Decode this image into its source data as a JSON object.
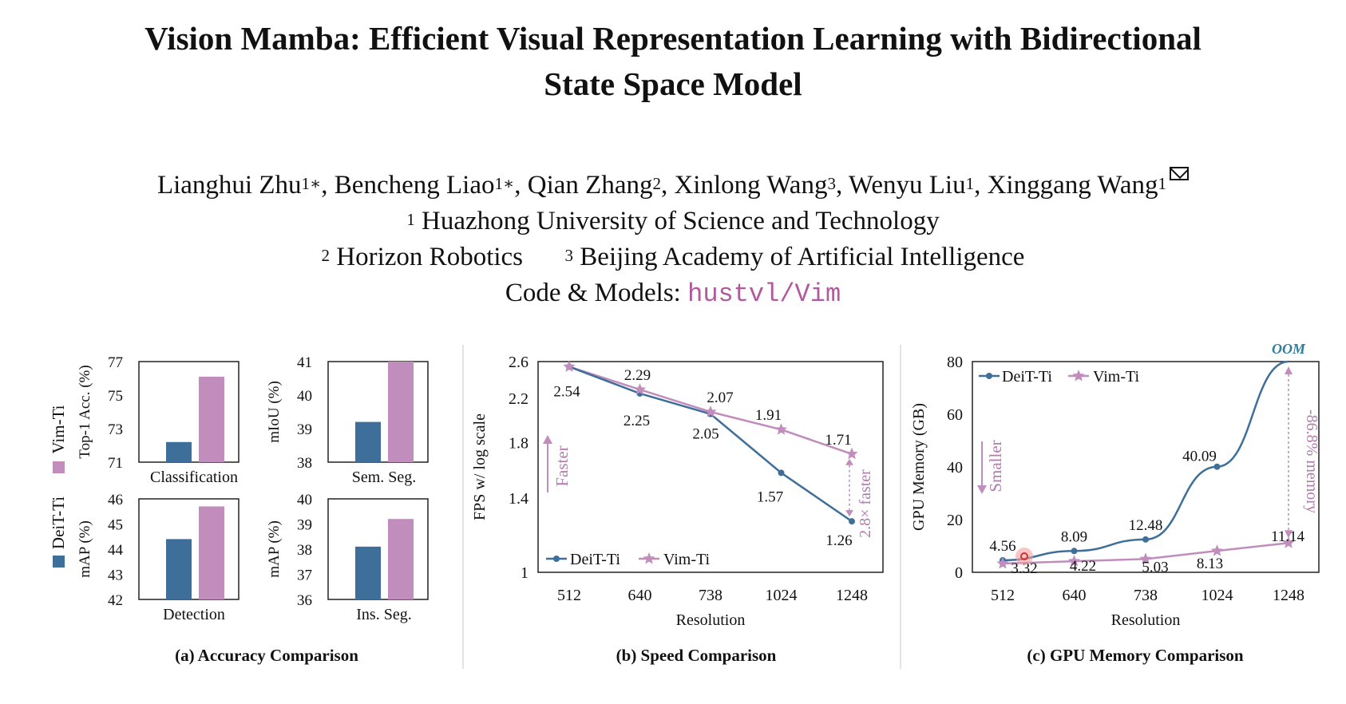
{
  "paper": {
    "title_line1": "Vision Mamba: Efficient Visual Representation Learning with Bidirectional",
    "title_line2": "State Space Model",
    "authors": [
      {
        "name": "Lianghui Zhu",
        "sup": "1∗"
      },
      {
        "name": "Bencheng Liao",
        "sup": "1∗"
      },
      {
        "name": "Qian Zhang",
        "sup": "2"
      },
      {
        "name": "Xinlong Wang",
        "sup": "3"
      },
      {
        "name": "Wenyu Liu",
        "sup": "1"
      },
      {
        "name": "Xinggang Wang",
        "sup": "1"
      }
    ],
    "affiliations": [
      {
        "sup": "1",
        "name": "Huazhong University of Science and Technology"
      },
      {
        "sup": "2",
        "name": "Horizon Robotics"
      },
      {
        "sup": "3",
        "name": "Beijing Academy of Artificial Intelligence"
      }
    ],
    "code_label": "Code & Models:",
    "code_link": "hustvl/Vim",
    "icons": [
      "envelope-icon"
    ]
  },
  "colors": {
    "deit": "#3e6f9a",
    "vim": "#c08dbd",
    "vim_text": "#b07cae",
    "link": "#b05a9e",
    "oom": "#2f7d9c"
  },
  "chart_data": [
    {
      "type": "bar",
      "panel": "a",
      "caption": "(a) Accuracy Comparison",
      "legend": [
        "DeiT-Ti",
        "Vim-Ti"
      ],
      "subplots": [
        {
          "name": "Classification",
          "ylabel": "Top-1 Acc. (%)",
          "ylim": [
            71,
            77
          ],
          "ticks": [
            71,
            73,
            75,
            77
          ],
          "values": {
            "DeiT-Ti": 72.2,
            "Vim-Ti": 76.1
          }
        },
        {
          "name": "Sem. Seg.",
          "ylabel": "mIoU (%)",
          "ylim": [
            38,
            41
          ],
          "ticks": [
            38,
            39,
            40,
            41
          ],
          "values": {
            "DeiT-Ti": 39.2,
            "Vim-Ti": 41.0
          }
        },
        {
          "name": "Detection",
          "ylabel": "mAP (%)",
          "ylim": [
            42,
            46
          ],
          "ticks": [
            42,
            43,
            44,
            45,
            46
          ],
          "values": {
            "DeiT-Ti": 44.4,
            "Vim-Ti": 45.7
          }
        },
        {
          "name": "Ins. Seg.",
          "ylabel": "mAP (%)",
          "ylim": [
            36,
            40
          ],
          "ticks": [
            36,
            37,
            38,
            39,
            40
          ],
          "values": {
            "DeiT-Ti": 38.1,
            "Vim-Ti": 39.2
          }
        }
      ]
    },
    {
      "type": "line",
      "panel": "b",
      "caption": "(b) Speed Comparison",
      "xlabel": "Resolution",
      "ylabel": "FPS w/ log scale",
      "categories": [
        "512",
        "640",
        "738",
        "1024",
        "1248"
      ],
      "yticks": [
        "1",
        "1.4",
        "1.8",
        "2.2",
        "2.6"
      ],
      "ylim": [
        1,
        2.6
      ],
      "series": [
        {
          "name": "DeiT-Ti",
          "values": [
            2.54,
            2.25,
            2.05,
            1.57,
            1.26
          ]
        },
        {
          "name": "Vim-Ti",
          "values": [
            2.54,
            2.29,
            2.07,
            1.91,
            1.71
          ]
        }
      ],
      "point_labels": {
        "DeiT-Ti": [
          "2.54",
          "2.25",
          "2.05",
          "1.57",
          "1.26"
        ],
        "Vim-Ti": [
          "",
          "2.29",
          "2.07",
          "1.91",
          "1.71"
        ]
      },
      "annotations": [
        "Faster",
        "2.8× faster"
      ],
      "legend_position": "bottom-left"
    },
    {
      "type": "line",
      "panel": "c",
      "caption": "(c) GPU Memory Comparison",
      "xlabel": "Resolution",
      "ylabel": "GPU Memory (GB)",
      "categories": [
        "512",
        "640",
        "738",
        "1024",
        "1248"
      ],
      "yticks": [
        "0",
        "20",
        "40",
        "60",
        "80"
      ],
      "ylim": [
        0,
        80
      ],
      "series": [
        {
          "name": "DeiT-Ti",
          "values": [
            4.56,
            8.09,
            12.48,
            40.09,
            80
          ]
        },
        {
          "name": "Vim-Ti",
          "values": [
            3.32,
            4.22,
            5.03,
            8.13,
            11.14
          ]
        }
      ],
      "point_labels": {
        "DeiT-Ti": [
          "4.56",
          "8.09",
          "12.48",
          "40.09",
          "OOM"
        ],
        "Vim-Ti": [
          "3.32",
          "4.22",
          "5.03",
          "8.13",
          "11.14"
        ]
      },
      "annotations": [
        "Smaller",
        "-86.8% memory"
      ],
      "legend_position": "top-left"
    }
  ]
}
